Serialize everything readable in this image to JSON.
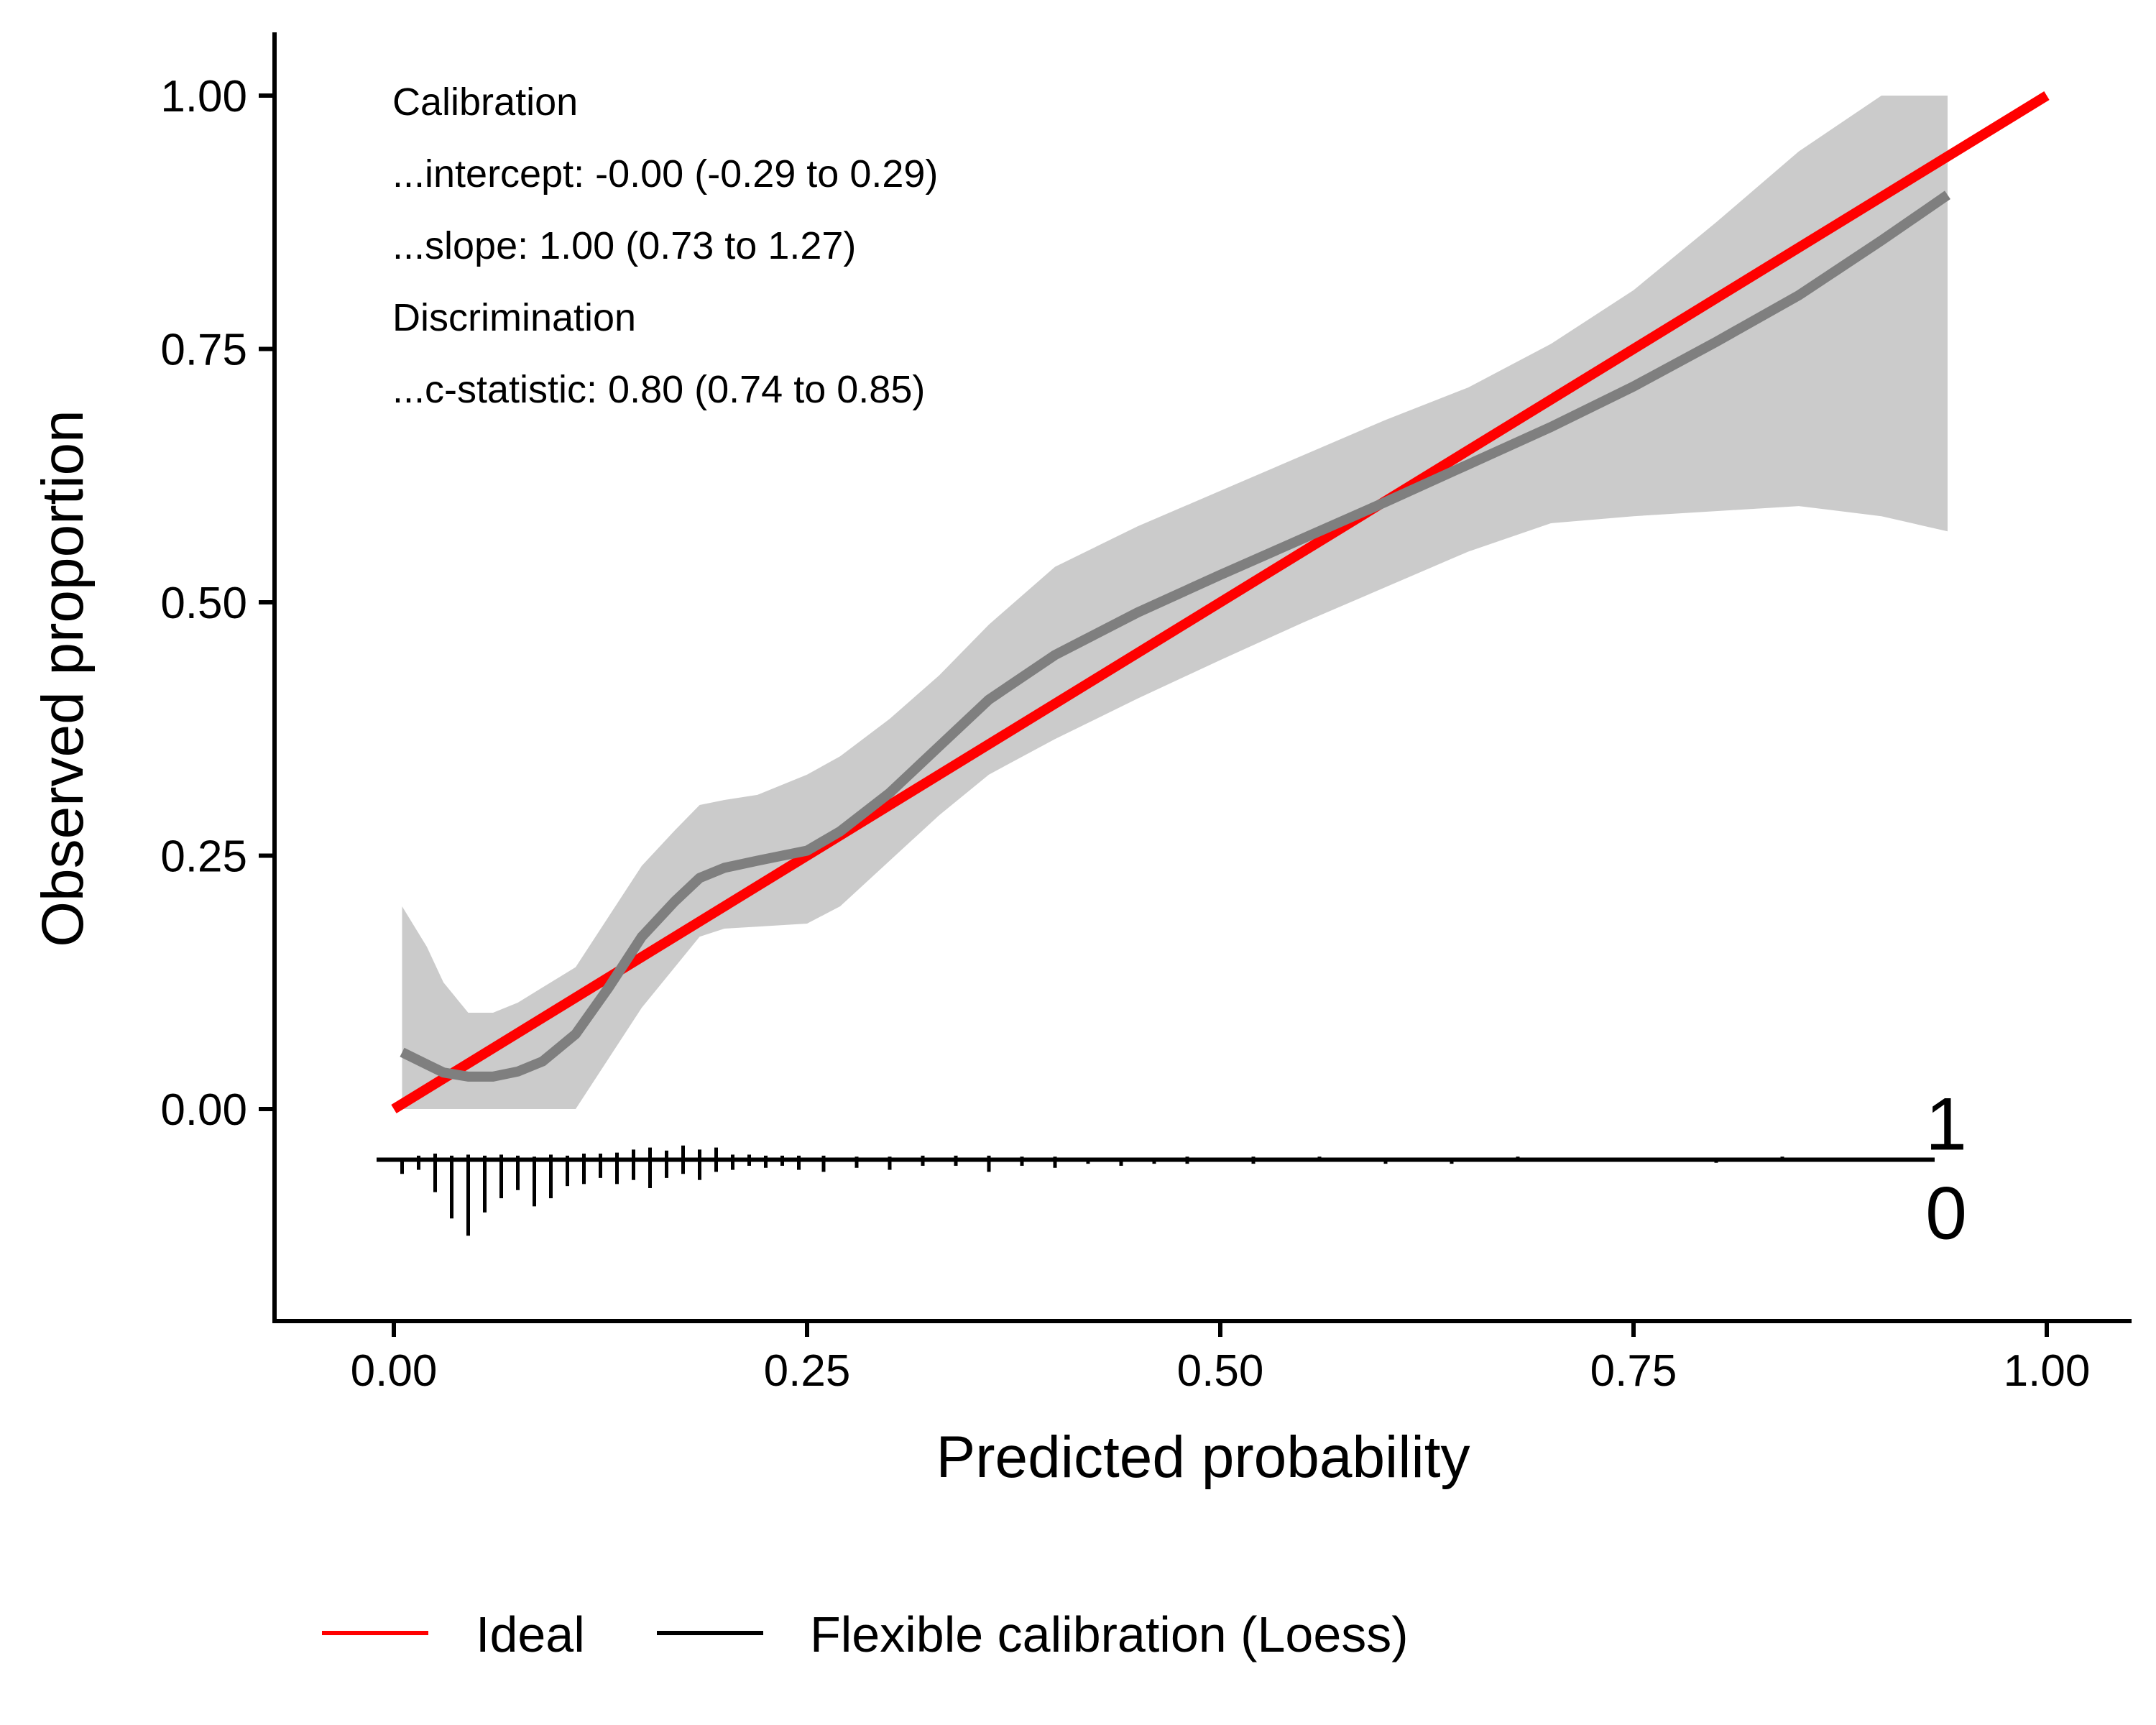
{
  "chart_data": {
    "type": "line",
    "title": "",
    "xlabel": "Predicted probability",
    "ylabel": "Observed proportion",
    "xlim": [
      -0.07,
      1.05
    ],
    "ylim": [
      -0.21,
      1.06
    ],
    "grid": false,
    "legend_position": "bottom",
    "x_ticks": [
      "0.00",
      "0.25",
      "0.50",
      "0.75",
      "1.00"
    ],
    "y_ticks": [
      "0.00",
      "0.25",
      "0.50",
      "0.75",
      "1.00"
    ],
    "annotations": [
      "Calibration",
      "...intercept: -0.00 (-0.29 to 0.29)",
      "...slope: 1.00 (0.73 to 1.27)",
      "Discrimination",
      "...c-statistic: 0.80 (0.74 to 0.85)"
    ],
    "legend": [
      {
        "label": "Ideal",
        "color": "#ff0000"
      },
      {
        "label": "Flexible calibration (Loess)",
        "color": "#000000"
      }
    ],
    "series": [
      {
        "name": "Ideal",
        "color": "#ff0000",
        "x": [
          0.0,
          1.0
        ],
        "y": [
          0.0,
          1.0
        ]
      },
      {
        "name": "Flexible calibration (Loess)",
        "color": "#7f7f7f",
        "x": [
          0.005,
          0.02,
          0.03,
          0.045,
          0.06,
          0.075,
          0.09,
          0.11,
          0.13,
          0.15,
          0.17,
          0.185,
          0.2,
          0.22,
          0.25,
          0.27,
          0.3,
          0.33,
          0.36,
          0.4,
          0.45,
          0.5,
          0.55,
          0.6,
          0.65,
          0.7,
          0.75,
          0.8,
          0.85,
          0.9,
          0.94
        ],
        "y": [
          0.056,
          0.044,
          0.036,
          0.032,
          0.032,
          0.037,
          0.047,
          0.074,
          0.12,
          0.17,
          0.205,
          0.228,
          0.238,
          0.245,
          0.255,
          0.274,
          0.312,
          0.358,
          0.404,
          0.448,
          0.49,
          0.527,
          0.563,
          0.599,
          0.636,
          0.673,
          0.713,
          0.757,
          0.803,
          0.857,
          0.902
        ]
      }
    ],
    "confidence_band": {
      "x": [
        0.005,
        0.02,
        0.03,
        0.045,
        0.06,
        0.075,
        0.09,
        0.11,
        0.13,
        0.15,
        0.17,
        0.185,
        0.2,
        0.22,
        0.25,
        0.27,
        0.3,
        0.33,
        0.36,
        0.4,
        0.45,
        0.5,
        0.55,
        0.6,
        0.65,
        0.7,
        0.75,
        0.8,
        0.85,
        0.9,
        0.94
      ],
      "lower": [
        0.0,
        0.0,
        0.0,
        0.0,
        0.0,
        0.0,
        0.0,
        0.0,
        0.05,
        0.1,
        0.14,
        0.17,
        0.178,
        0.18,
        0.183,
        0.2,
        0.245,
        0.29,
        0.33,
        0.365,
        0.405,
        0.443,
        0.48,
        0.515,
        0.55,
        0.578,
        0.585,
        0.59,
        0.595,
        0.585,
        0.57
      ],
      "upper": [
        0.2,
        0.16,
        0.125,
        0.095,
        0.095,
        0.105,
        0.12,
        0.14,
        0.19,
        0.24,
        0.275,
        0.3,
        0.305,
        0.31,
        0.33,
        0.348,
        0.385,
        0.428,
        0.478,
        0.535,
        0.575,
        0.61,
        0.645,
        0.68,
        0.712,
        0.755,
        0.808,
        0.875,
        0.945,
        1.0,
        1.0
      ]
    },
    "distribution": {
      "labels": [
        "1",
        "0"
      ],
      "bins_x": [
        0.005,
        0.015,
        0.025,
        0.035,
        0.045,
        0.055,
        0.065,
        0.075,
        0.085,
        0.095,
        0.105,
        0.115,
        0.125,
        0.135,
        0.145,
        0.155,
        0.165,
        0.175,
        0.185,
        0.195,
        0.205,
        0.215,
        0.225,
        0.235,
        0.245,
        0.26,
        0.28,
        0.3,
        0.32,
        0.34,
        0.36,
        0.38,
        0.4,
        0.42,
        0.44,
        0.46,
        0.48,
        0.52,
        0.56,
        0.6,
        0.64,
        0.68,
        0.72,
        0.76,
        0.8,
        0.84,
        0.88,
        0.92
      ],
      "outcome_1": [
        0.002,
        0.004,
        0.006,
        0.004,
        0.005,
        0.004,
        0.005,
        0.004,
        0.003,
        0.005,
        0.004,
        0.006,
        0.006,
        0.007,
        0.01,
        0.012,
        0.009,
        0.014,
        0.01,
        0.012,
        0.005,
        0.005,
        0.004,
        0.004,
        0.004,
        0.004,
        0.003,
        0.003,
        0.004,
        0.004,
        0.004,
        0.003,
        0.003,
        0.002,
        0.002,
        0.002,
        0.003,
        0.003,
        0.003,
        0.002,
        0.002,
        0.003,
        0.002,
        0.002,
        0.002,
        0.003,
        0.002,
        0.002
      ],
      "outcome_0": [
        0.014,
        0.01,
        0.032,
        0.058,
        0.075,
        0.052,
        0.038,
        0.03,
        0.046,
        0.038,
        0.026,
        0.024,
        0.018,
        0.024,
        0.02,
        0.028,
        0.018,
        0.014,
        0.02,
        0.012,
        0.01,
        0.006,
        0.008,
        0.006,
        0.01,
        0.012,
        0.008,
        0.01,
        0.006,
        0.006,
        0.012,
        0.006,
        0.008,
        0.004,
        0.006,
        0.004,
        0.004,
        0.004,
        0.002,
        0.004,
        0.004,
        0.002,
        0.002,
        0.002,
        0.003,
        0.002,
        0.002,
        0.002
      ]
    }
  }
}
